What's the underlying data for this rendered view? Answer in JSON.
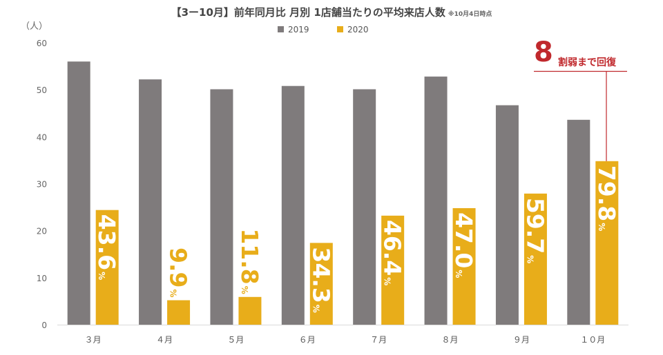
{
  "chart_data": {
    "type": "bar",
    "title": "【3ー10月】前年同月比 月別 1店舗当たりの平均来店人数",
    "title_note": "※10月4日時点",
    "ylabel": "（人）",
    "ylim": [
      0,
      60
    ],
    "yticks": [
      "0",
      "10",
      "20",
      "30",
      "40",
      "50",
      "60"
    ],
    "grid": false,
    "legend_position": "top-center",
    "categories": [
      "３月",
      "４月",
      "５月",
      "６月",
      "７月",
      "８月",
      "９月",
      "１０月"
    ],
    "series": [
      {
        "name": "2019",
        "color": "#7f7b7c",
        "values": [
          56.0,
          52.2,
          50.1,
          50.8,
          50.1,
          52.8,
          46.7,
          43.6
        ]
      },
      {
        "name": "2020",
        "color": "#e8ad1a",
        "values": [
          24.4,
          5.2,
          5.9,
          17.4,
          23.2,
          24.8,
          27.9,
          34.8
        ]
      }
    ],
    "ratio_labels": [
      {
        "number": "43.6",
        "unit": "%"
      },
      {
        "number": "9.9",
        "unit": "%"
      },
      {
        "number": "11.8",
        "unit": "%"
      },
      {
        "number": "34.3",
        "unit": "%"
      },
      {
        "number": "46.4",
        "unit": "%"
      },
      {
        "number": "47.0",
        "unit": "%"
      },
      {
        "number": "59.7",
        "unit": "%"
      },
      {
        "number": "79.8",
        "unit": "%"
      }
    ],
    "callout": {
      "number": "8",
      "text": "割弱まで回復",
      "color": "#c0282c"
    }
  }
}
